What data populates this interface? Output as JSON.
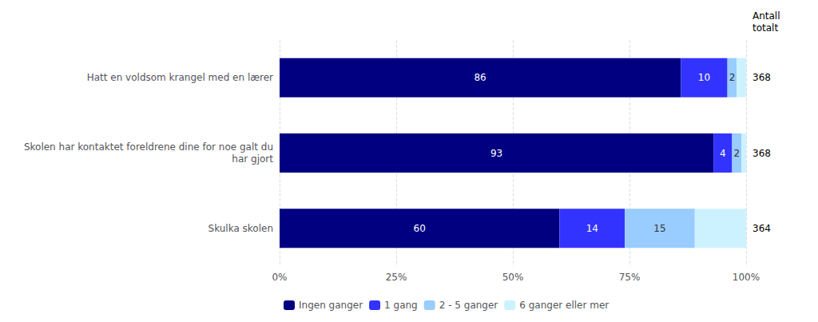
{
  "chart_data": {
    "type": "bar",
    "orientation": "horizontal",
    "stacked": true,
    "categories": [
      "Hatt en voldsom krangel med en lærer",
      "Skolen har kontaktet foreldrene dine for noe galt du\nhar gjort",
      "Skulka skolen"
    ],
    "series": [
      {
        "name": "Ingen ganger",
        "color": "#000080",
        "values": [
          86,
          93,
          60
        ],
        "data_labels": true
      },
      {
        "name": "1 gang",
        "color": "#3333ff",
        "values": [
          10,
          4,
          14
        ],
        "data_labels": true
      },
      {
        "name": "2 - 5 ganger",
        "color": "#99ccff",
        "values": [
          2,
          2,
          15
        ],
        "data_labels": true
      },
      {
        "name": "6 ganger eller mer",
        "color": "#ccf2ff",
        "values": [
          2,
          1,
          11
        ],
        "data_labels": false
      }
    ],
    "xlim": [
      0,
      100
    ],
    "xticks": [
      {
        "value": 0,
        "label": "0%"
      },
      {
        "value": 25,
        "label": "25%"
      },
      {
        "value": 50,
        "label": "50%"
      },
      {
        "value": 75,
        "label": "75%"
      },
      {
        "value": 100,
        "label": "100%"
      }
    ],
    "grid": true,
    "legend": "lower left",
    "totals_label": "Antall\ntotalt",
    "totals": [
      368,
      368,
      364
    ]
  }
}
